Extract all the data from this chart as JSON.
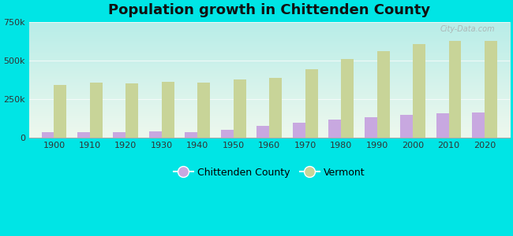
{
  "title": "Population growth in Chittenden County",
  "years": [
    1900,
    1910,
    1920,
    1930,
    1940,
    1950,
    1960,
    1970,
    1980,
    1990,
    2000,
    2010,
    2020
  ],
  "chittenden": [
    36000,
    37000,
    35000,
    40000,
    38000,
    52000,
    75000,
    99000,
    115000,
    131000,
    147000,
    156000,
    163000
  ],
  "vermont": [
    344000,
    356000,
    352000,
    360000,
    359000,
    378000,
    390000,
    445000,
    511000,
    563000,
    609000,
    626000,
    625000
  ],
  "county_color": "#c8a8e0",
  "vermont_color": "#c8d498",
  "outer_bg": "#00e5e5",
  "plot_bg_top": "#b8ede8",
  "plot_bg_bottom": "#eef8ee",
  "ylim": [
    0,
    750000
  ],
  "yticks": [
    0,
    250000,
    500000,
    750000
  ],
  "bar_width": 0.35,
  "legend_county": "Chittenden County",
  "legend_vermont": "Vermont",
  "title_fontsize": 13,
  "watermark": "City-Data.com"
}
